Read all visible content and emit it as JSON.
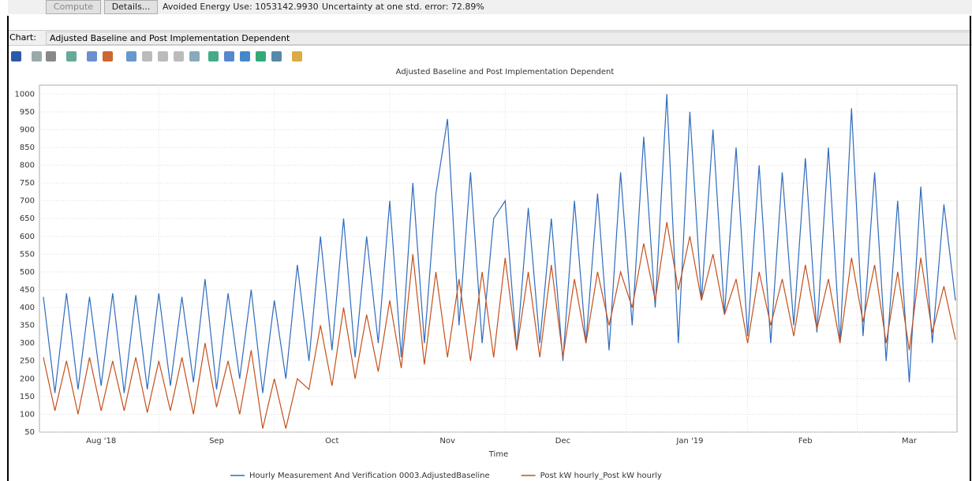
{
  "toolbar": {
    "compute": "Compute",
    "details": "Details...",
    "avoided": "Avoided Energy Use: 1053142.9930",
    "uncertainty": "Uncertainty at one std. error: 72.89%",
    "chart_label": "Chart:",
    "chart_select": "Adjusted Baseline and Post Implementation Dependent"
  },
  "chart_data": {
    "type": "line",
    "title": "Adjusted Baseline and Post Implementation Dependent",
    "x_label": "Time",
    "categories": [
      null,
      null,
      null,
      null,
      null,
      "Aug '18",
      null,
      null,
      null,
      null,
      null,
      null,
      null,
      null,
      null,
      "Sep",
      null,
      null,
      null,
      null,
      null,
      null,
      null,
      null,
      null,
      "Oct",
      null,
      null,
      null,
      null,
      null,
      null,
      null,
      null,
      null,
      "Nov",
      null,
      null,
      null,
      null,
      null,
      null,
      null,
      null,
      null,
      "Dec",
      null,
      null,
      null,
      null,
      null,
      null,
      null,
      null,
      null,
      null,
      "Jan '19",
      null,
      null,
      null,
      null,
      null,
      null,
      null,
      null,
      null,
      "Feb",
      null,
      null,
      null,
      null,
      null,
      null,
      null,
      null,
      "Mar",
      null,
      null,
      null,
      null
    ],
    "series": [
      {
        "name": "Hourly Measurement And Verification 0003.AdjustedBaseline",
        "color": "#2e6bbd",
        "values": [
          430,
          160,
          440,
          170,
          430,
          180,
          440,
          160,
          435,
          170,
          440,
          180,
          430,
          190,
          480,
          170,
          440,
          200,
          450,
          160,
          420,
          200,
          520,
          250,
          600,
          280,
          650,
          260,
          600,
          300,
          700,
          260,
          750,
          300,
          720,
          930,
          350,
          780,
          300,
          650,
          700,
          280,
          680,
          300,
          650,
          250,
          700,
          300,
          720,
          280,
          780,
          350,
          880,
          400,
          1000,
          300,
          950,
          420,
          900,
          380,
          850,
          320,
          800,
          300,
          780,
          350,
          820,
          330,
          850,
          300,
          960,
          320,
          780,
          250,
          700,
          190,
          740,
          300,
          690,
          420
        ]
      },
      {
        "name": "Post kW hourly_Post kW hourly",
        "color": "#c4501b",
        "values": [
          260,
          110,
          250,
          100,
          260,
          110,
          250,
          110,
          260,
          105,
          250,
          110,
          260,
          100,
          300,
          120,
          250,
          100,
          280,
          60,
          200,
          60,
          200,
          170,
          350,
          180,
          400,
          200,
          380,
          220,
          420,
          230,
          550,
          240,
          500,
          260,
          480,
          250,
          500,
          260,
          540,
          280,
          500,
          260,
          520,
          260,
          480,
          300,
          500,
          350,
          500,
          400,
          580,
          420,
          640,
          450,
          600,
          420,
          550,
          380,
          480,
          300,
          500,
          350,
          480,
          320,
          520,
          340,
          480,
          300,
          540,
          360,
          520,
          300,
          500,
          280,
          540,
          330,
          460,
          310
        ]
      }
    ],
    "ylim": [
      50,
      1025
    ],
    "yticks": [
      50,
      100,
      150,
      200,
      250,
      300,
      350,
      400,
      450,
      500,
      550,
      600,
      650,
      700,
      750,
      800,
      850,
      900,
      950,
      1000
    ],
    "grid": true
  }
}
